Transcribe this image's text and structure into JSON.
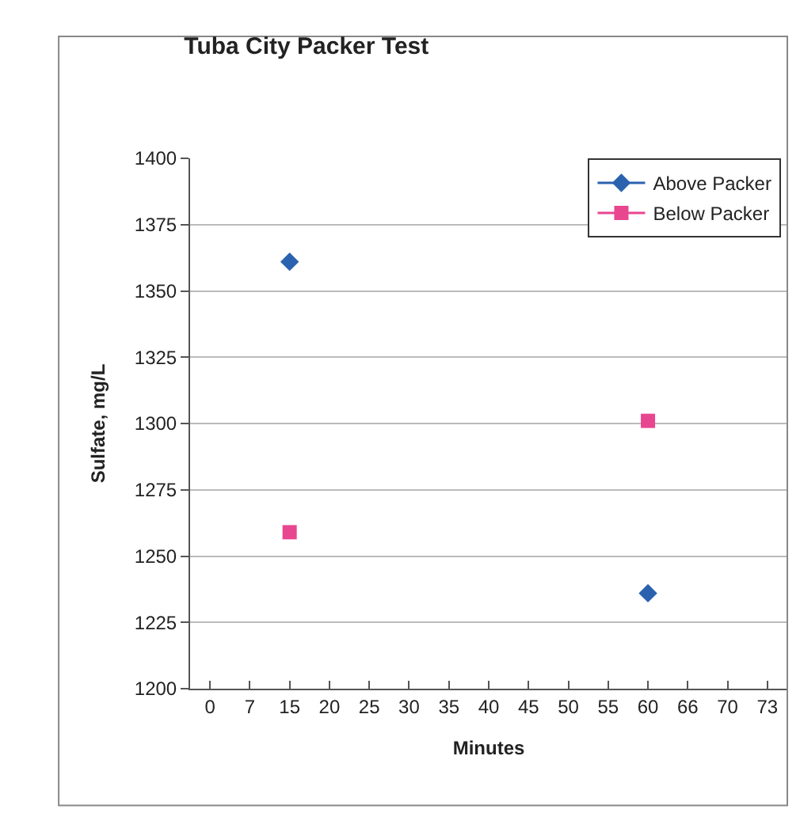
{
  "chart_data": {
    "type": "line",
    "title": "Tuba City Packer Test",
    "xlabel": "Minutes",
    "ylabel": "Sulfate, mg/L",
    "categories": [
      "0",
      "7",
      "15",
      "20",
      "25",
      "30",
      "35",
      "40",
      "45",
      "50",
      "55",
      "60",
      "66",
      "70",
      "73"
    ],
    "series": [
      {
        "name": "Above Packer",
        "color": "#2a62b0",
        "marker": "diamond",
        "values": [
          null,
          null,
          1361,
          null,
          null,
          null,
          null,
          null,
          null,
          null,
          null,
          1236,
          null,
          null,
          null
        ]
      },
      {
        "name": "Below Packer",
        "color": "#e8468f",
        "marker": "square",
        "values": [
          null,
          null,
          1259,
          null,
          null,
          null,
          null,
          null,
          null,
          null,
          null,
          1301,
          null,
          null,
          null
        ]
      }
    ],
    "ylim": [
      1200,
      1400
    ],
    "yticks": [
      1200,
      1225,
      1250,
      1275,
      1300,
      1325,
      1350,
      1375,
      1400
    ],
    "grid": "y",
    "legend": "top right"
  }
}
